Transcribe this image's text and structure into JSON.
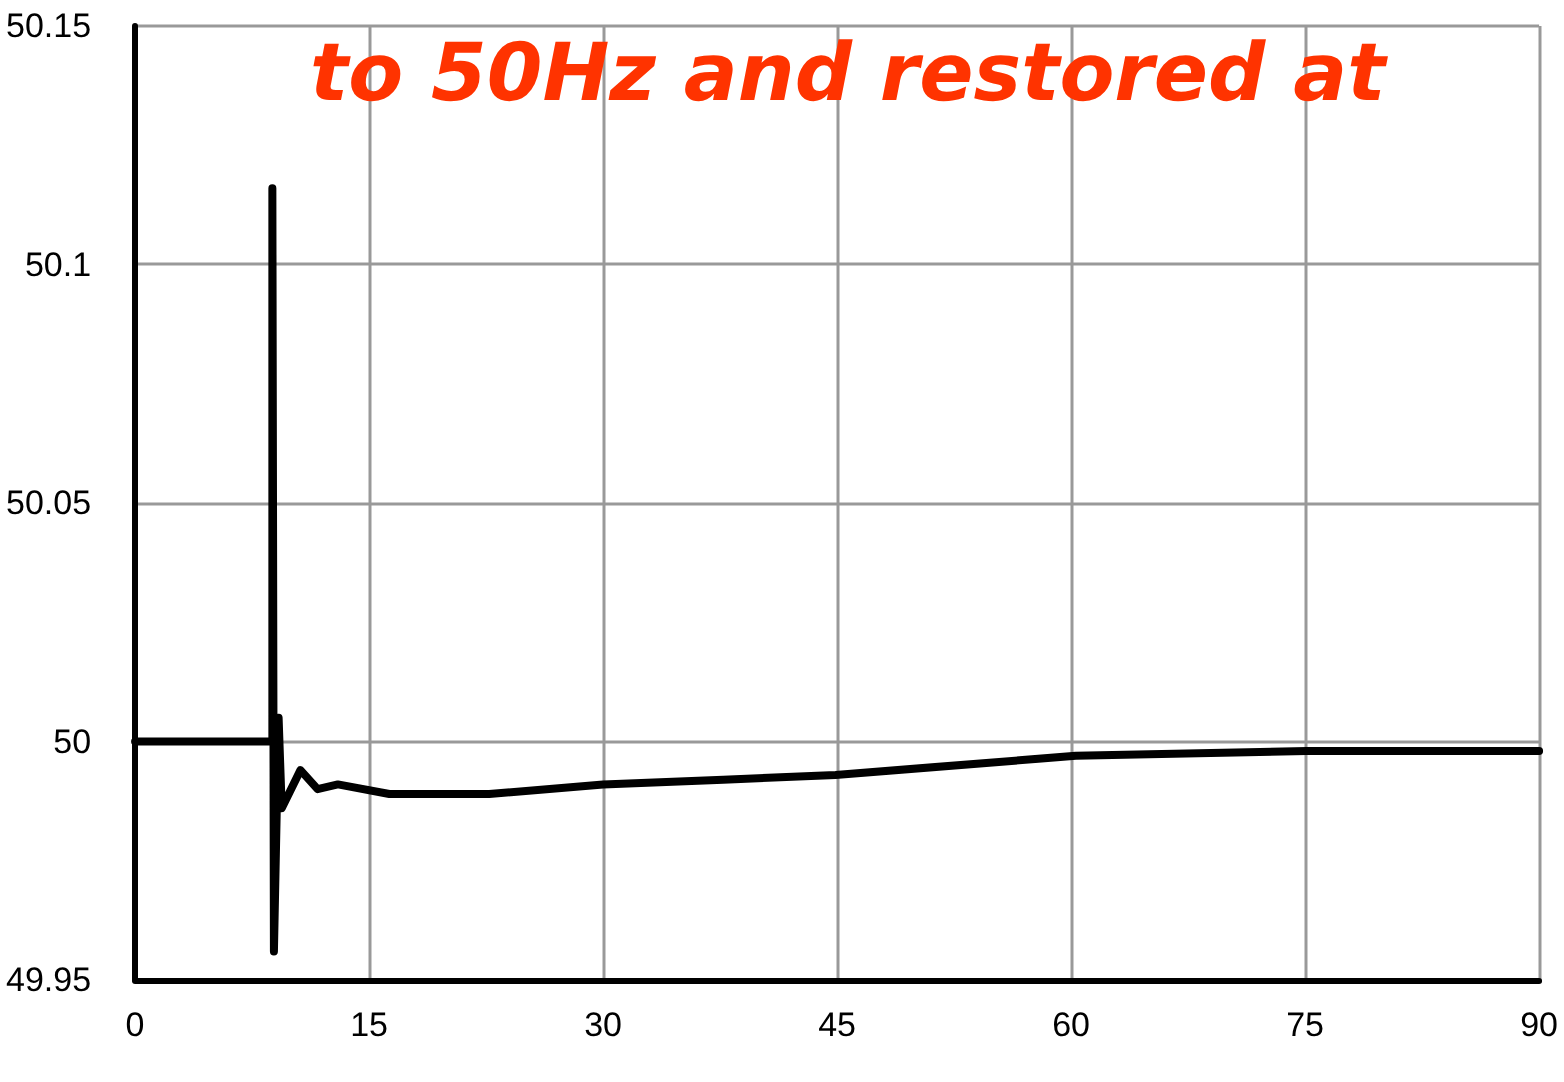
{
  "chart_data": {
    "type": "line",
    "title": "to 50Hz and restored at",
    "x": [
      0,
      8.8,
      8.8,
      8.9,
      9.2,
      9.4,
      10.6,
      11.7,
      13.0,
      16.3,
      22.7,
      30,
      37.7,
      44.9,
      60.3,
      75.1,
      90
    ],
    "series": [
      {
        "color": "#000000",
        "values": [
          50,
          50,
          50.116,
          49.956,
          50.005,
          49.986,
          49.994,
          49.99,
          49.991,
          49.989,
          49.989,
          49.991,
          49.992,
          49.993,
          49.997,
          49.998,
          49.998
        ]
      }
    ],
    "xlim": [
      0,
      90
    ],
    "xticks": [
      0,
      15,
      30,
      45,
      60,
      75,
      90
    ],
    "ylim": [
      49.95,
      50.15
    ],
    "yticks": [
      49.95,
      50,
      50.05,
      50.1,
      50.15
    ],
    "grid": true,
    "marker": "none",
    "line_style": "solid"
  }
}
